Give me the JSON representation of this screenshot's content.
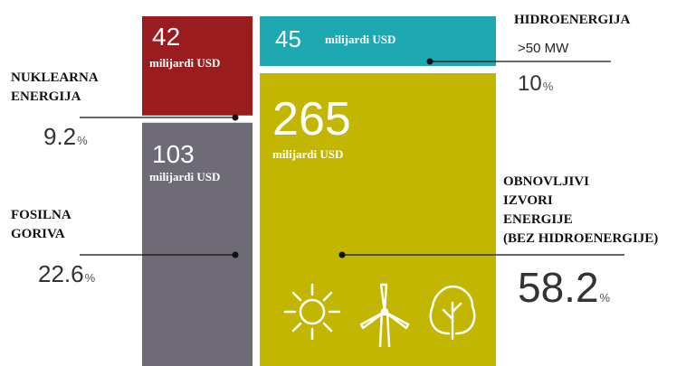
{
  "chart_data": {
    "type": "treemap",
    "categories": [
      [
        "NUKLEARNA",
        "ENERGIJA"
      ],
      [
        "FOSILNA",
        "GORIVA"
      ],
      [
        "HIDROENERGIJA"
      ],
      [
        "OBNOVLJIVI",
        "IZVORI",
        "ENERGIJE",
        "(BEZ HIDROENERGIJE)"
      ]
    ],
    "category_notes": [
      null,
      null,
      ">50 MW",
      null
    ],
    "values": [
      42,
      103,
      45,
      265
    ],
    "value_unit": "milijardi USD",
    "shares": [
      9.2,
      22.6,
      10,
      58.2
    ],
    "share_unit": "%",
    "colors": [
      "#9b1c1f",
      "#6e6b76",
      "#1ea8b1",
      "#c3b600"
    ],
    "columns": [
      [
        0,
        1
      ],
      [
        2,
        3
      ]
    ]
  }
}
